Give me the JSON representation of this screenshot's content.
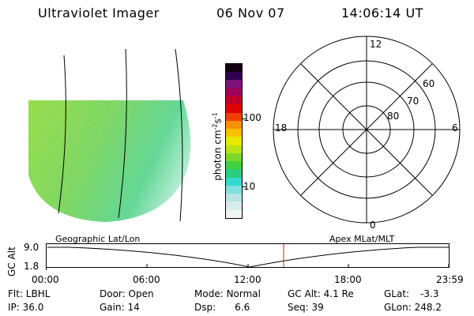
{
  "header": {
    "instrument": "Ultraviolet Imager",
    "date": "06 Nov 07",
    "time": "14:06:14 UT"
  },
  "colorbar": {
    "unit_label": "photon cm",
    "unit_exp1": "-2",
    "unit_s": "s",
    "unit_exp2": "-1",
    "ticks": [
      "100",
      "10"
    ],
    "colors": [
      "#f0f4f4",
      "#d8ecec",
      "#b8e4e4",
      "#7ee0e0",
      "#34d8d0",
      "#2ccc80",
      "#40d040",
      "#7cd82c",
      "#b8e418",
      "#e8e800",
      "#f8c000",
      "#f89000",
      "#f04000",
      "#e00000",
      "#c00028",
      "#a00058",
      "#80107c",
      "#300050",
      "#100010"
    ]
  },
  "polar": {
    "lat_labels": [
      "60",
      "70",
      "80"
    ],
    "mlt_labels": [
      "12",
      "18",
      "6",
      "0"
    ]
  },
  "timeline": {
    "axis_title": "GC Alt",
    "y_ticks": [
      "9.0",
      "1.8"
    ],
    "left_label": "Geographic Lat/Lon",
    "right_label": "Apex MLat/MLT",
    "x_ticks": [
      "00:00",
      "06:00",
      "12:00",
      "18:00",
      "23:59"
    ],
    "marker_color": "#d02020"
  },
  "status": {
    "filter": "Flt: LBHL",
    "ip": "IP: 36.0",
    "door": "Door: Open",
    "gain": "Gain: 14",
    "mode_label": "Mode:",
    "mode_value": "Normal",
    "dsp_label": "Dsp:",
    "dsp_value": "6.6",
    "gcalt_label": "GC Alt:",
    "gcalt_value": "4.1 Re",
    "seq_label": "Seq:",
    "seq_value": "39",
    "glat_label": "GLat:",
    "glat_value": "-3.3",
    "glon_label": "GLon:",
    "glon_value": "248.2"
  }
}
